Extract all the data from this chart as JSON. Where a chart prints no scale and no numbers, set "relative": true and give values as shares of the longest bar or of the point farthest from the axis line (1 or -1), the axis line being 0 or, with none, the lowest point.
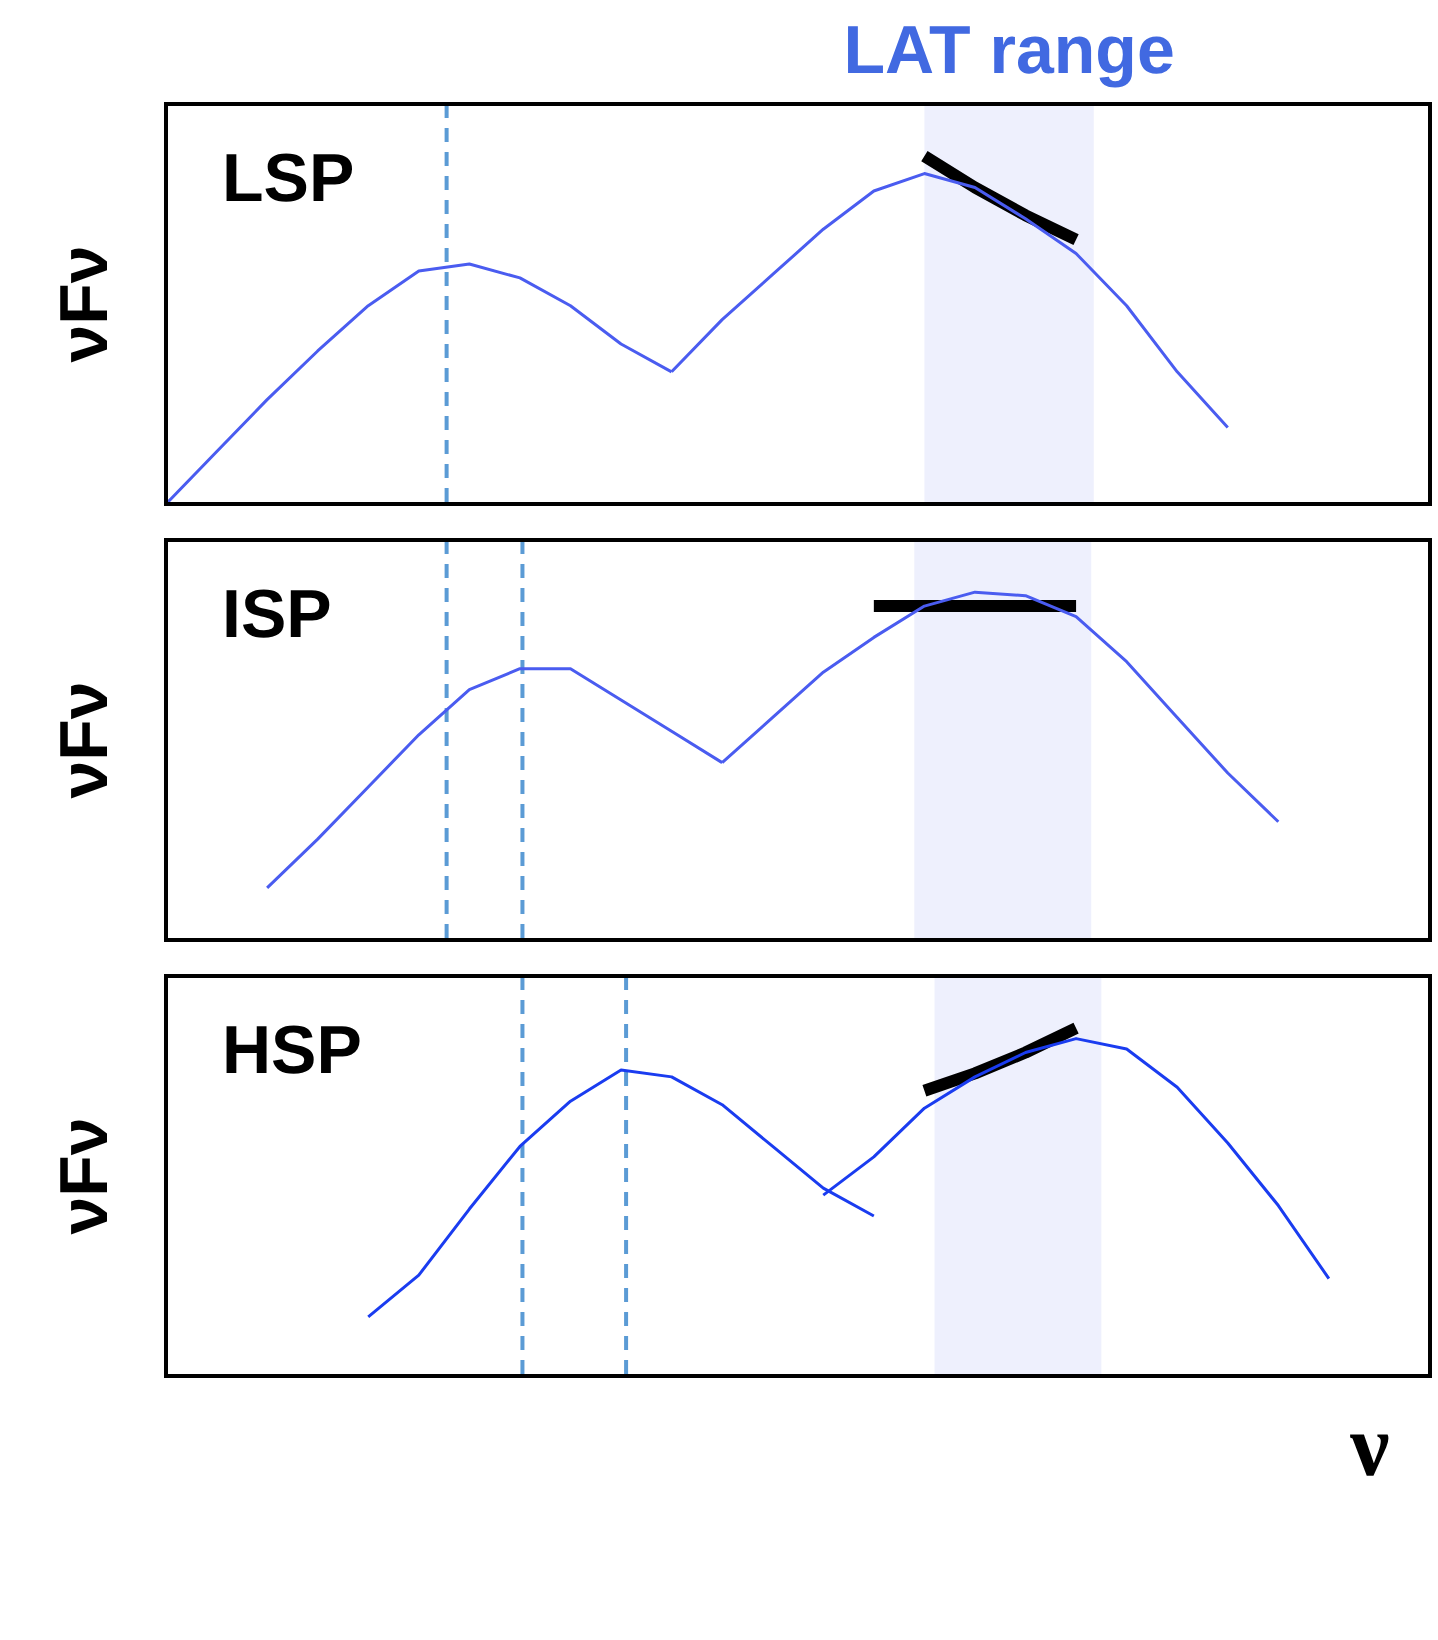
{
  "chart_data": [
    {
      "type": "line",
      "relative": true,
      "title": "LAT range",
      "ylabel": "νFν",
      "annotations": [
        "LSP"
      ],
      "tick_labels": false,
      "marker": "none",
      "categories": [
        null,
        null,
        null,
        null,
        null,
        null,
        null,
        null,
        null,
        null,
        null,
        null,
        null,
        null,
        null,
        null,
        null,
        null,
        null,
        null,
        null,
        null,
        null,
        null,
        null,
        null
      ],
      "series": [
        {
          "color": "#4a5cf0",
          "values": [
            0,
            0.15,
            0.3,
            0.44,
            0.57,
            0.67,
            0.69,
            0.65,
            0.57,
            0.46,
            0.38,
            null,
            null,
            null,
            null,
            null,
            null,
            null,
            null,
            null,
            null,
            null,
            null,
            null,
            null,
            null
          ]
        },
        {
          "color": "#4a5cf0",
          "values": [
            null,
            null,
            null,
            null,
            null,
            null,
            null,
            null,
            null,
            null,
            0.38,
            0.53,
            0.66,
            0.79,
            0.9,
            0.95,
            0.91,
            0.82,
            0.72,
            0.57,
            0.38,
            0.22,
            null,
            null,
            null,
            null
          ]
        },
        {
          "color": "#000000",
          "values": [
            null,
            null,
            null,
            null,
            null,
            null,
            null,
            null,
            null,
            null,
            null,
            null,
            null,
            null,
            null,
            1.0,
            0.91,
            0.83,
            0.76,
            null,
            null,
            null,
            null,
            null,
            null,
            null
          ]
        }
      ]
    },
    {
      "type": "line",
      "relative": true,
      "ylabel": "νFν",
      "annotations": [
        "ISP"
      ],
      "tick_labels": false,
      "marker": "none",
      "categories": [
        null,
        null,
        null,
        null,
        null,
        null,
        null,
        null,
        null,
        null,
        null,
        null,
        null,
        null,
        null,
        null,
        null,
        null,
        null,
        null,
        null,
        null,
        null,
        null,
        null,
        null
      ],
      "series": [
        {
          "color": "#4a5cf0",
          "values": [
            null,
            null,
            0.15,
            0.29,
            0.44,
            0.59,
            0.72,
            0.78,
            0.78,
            0.69,
            0.6,
            0.51,
            null,
            null,
            null,
            null,
            null,
            null,
            null,
            null,
            null,
            null,
            null,
            null,
            null,
            null
          ]
        },
        {
          "color": "#4a5cf0",
          "values": [
            null,
            null,
            null,
            null,
            null,
            null,
            null,
            null,
            null,
            null,
            null,
            0.51,
            0.64,
            0.77,
            0.87,
            0.96,
            1.0,
            0.99,
            0.93,
            0.8,
            0.64,
            0.48,
            0.34,
            null,
            null,
            null
          ]
        },
        {
          "color": "#000000",
          "values": [
            null,
            null,
            null,
            null,
            null,
            null,
            null,
            null,
            null,
            null,
            null,
            null,
            null,
            null,
            0.96,
            0.96,
            0.96,
            0.96,
            0.96,
            null,
            null,
            null,
            null,
            null,
            null,
            null
          ]
        }
      ]
    },
    {
      "type": "line",
      "relative": true,
      "ylabel": "νFν",
      "xlabel": "ν",
      "annotations": [
        "HSP"
      ],
      "tick_labels": false,
      "marker": "none",
      "categories": [
        null,
        null,
        null,
        null,
        null,
        null,
        null,
        null,
        null,
        null,
        null,
        null,
        null,
        null,
        null,
        null,
        null,
        null,
        null,
        null,
        null,
        null,
        null,
        null,
        null,
        null
      ],
      "series": [
        {
          "color": "#1a3cf0",
          "values": [
            null,
            null,
            null,
            null,
            0.17,
            0.29,
            0.48,
            0.66,
            0.79,
            0.88,
            0.86,
            0.78,
            0.66,
            0.54,
            0.46,
            null,
            null,
            null,
            null,
            null,
            null,
            null,
            null,
            null,
            null,
            null
          ]
        },
        {
          "color": "#1a3cf0",
          "values": [
            null,
            null,
            null,
            null,
            null,
            null,
            null,
            null,
            null,
            null,
            null,
            null,
            null,
            0.52,
            0.63,
            0.77,
            0.86,
            0.93,
            0.97,
            0.94,
            0.83,
            0.67,
            0.49,
            0.28,
            null,
            null
          ]
        },
        {
          "color": "#000000",
          "values": [
            null,
            null,
            null,
            null,
            null,
            null,
            null,
            null,
            null,
            null,
            null,
            null,
            null,
            null,
            null,
            0.82,
            0.87,
            0.93,
            1.0,
            null,
            null,
            null,
            null,
            null,
            null,
            null
          ]
        }
      ]
    }
  ]
}
